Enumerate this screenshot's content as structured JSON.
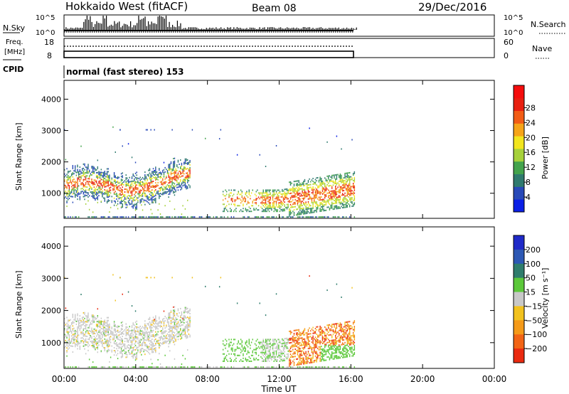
{
  "header": {
    "station": "Hokkaido West (fitACF)",
    "beam": "Beam 08",
    "date": "29/Dec/2016"
  },
  "noise_panel": {
    "left_label": "N.Sky",
    "left_ticks": [
      "10^5",
      "10^0"
    ],
    "right_label": "N.Search",
    "right_ticks": [
      "10^5",
      "10^0"
    ]
  },
  "freq_panel": {
    "left_label_line1": "Freq.",
    "left_label_line2": "[MHz]",
    "left_ticks": [
      "18",
      "8"
    ],
    "right_label": "Nave",
    "right_ticks": [
      "60",
      "0"
    ]
  },
  "cpid": {
    "label": "CPID",
    "mode": "normal (fast stereo) 153"
  },
  "chart_data": [
    {
      "type": "heatmap",
      "name": "power",
      "ylabel": "Slant Range [km]",
      "yticks": [
        1000,
        2000,
        3000,
        4000
      ],
      "ylim": [
        200,
        4600
      ],
      "xlim": [
        0,
        24
      ],
      "colorbar": {
        "label": "Power [dB]",
        "ticks": [
          "4",
          "8",
          "12",
          "16",
          "20",
          "24",
          "28"
        ],
        "colors": [
          "#0a1fe6",
          "#2849b8",
          "#2f7a6e",
          "#43a34c",
          "#a6d13a",
          "#f2e51e",
          "#f6a418",
          "#f25c15",
          "#e81f10",
          "#f50d0d"
        ]
      }
    },
    {
      "type": "heatmap",
      "name": "velocity",
      "ylabel": "Slant Range [km]",
      "yticks": [
        1000,
        2000,
        3000,
        4000
      ],
      "ylim": [
        200,
        4600
      ],
      "xlim": [
        0,
        24
      ],
      "colorbar": {
        "label": "Velocity [m s⁻¹]",
        "ticks": [
          "200",
          "100",
          "50",
          "15",
          "−15",
          "−50",
          "−100",
          "−200"
        ],
        "colors": [
          "#1f2ac8",
          "#2d58b4",
          "#2f7d6c",
          "#5cc83a",
          "#c8c8c8",
          "#f2c21e",
          "#f59a18",
          "#f26415",
          "#ea2a10"
        ]
      }
    }
  ],
  "time_axis": {
    "label": "Time UT",
    "ticks": [
      "00:00",
      "04:00",
      "08:00",
      "12:00",
      "16:00",
      "20:00",
      "00:00"
    ]
  }
}
